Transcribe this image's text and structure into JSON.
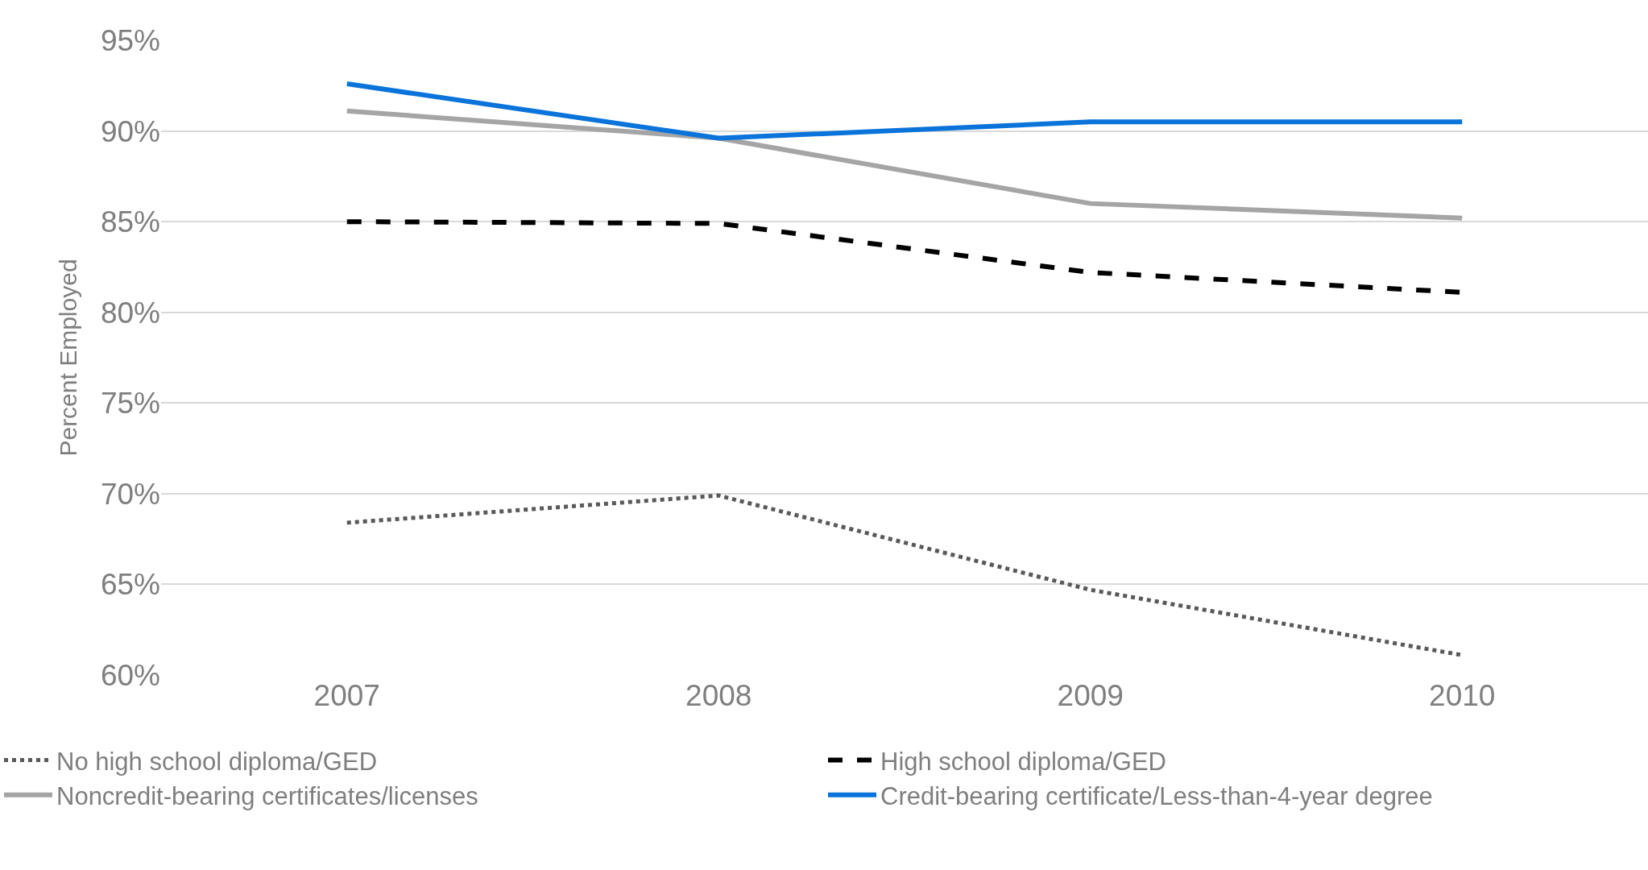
{
  "chart_data": {
    "type": "line",
    "ylabel": "Percent Employed",
    "categories": [
      "2007",
      "2008",
      "2009",
      "2010"
    ],
    "series": [
      {
        "name": "No high school diploma/GED",
        "color": "#595959",
        "line_style": "dotted",
        "values": [
          68.4,
          69.9,
          64.7,
          61.1
        ]
      },
      {
        "name": "High school diploma/GED",
        "color": "#000000",
        "line_style": "dashed",
        "values": [
          85.0,
          84.9,
          82.2,
          81.1
        ]
      },
      {
        "name": "Noncredit-bearing certificates/licenses",
        "color": "#a5a5a5",
        "line_style": "solid",
        "values": [
          91.1,
          89.6,
          86.0,
          85.2
        ]
      },
      {
        "name": "Credit-bearing certificate/Less-than-4-year degree",
        "color": "#0a74da",
        "line_style": "solid",
        "values": [
          92.6,
          89.6,
          90.5,
          90.5
        ]
      }
    ],
    "ylim": [
      60,
      95
    ],
    "yticks": [
      {
        "value": 60,
        "label": "60%"
      },
      {
        "value": 65,
        "label": "65%"
      },
      {
        "value": 70,
        "label": "70%"
      },
      {
        "value": 75,
        "label": "75%"
      },
      {
        "value": 80,
        "label": "80%"
      },
      {
        "value": 85,
        "label": "85%"
      },
      {
        "value": 90,
        "label": "90%"
      },
      {
        "value": 95,
        "label": "95%"
      }
    ],
    "grid": "y",
    "legend": "bottom",
    "marker": "none"
  }
}
